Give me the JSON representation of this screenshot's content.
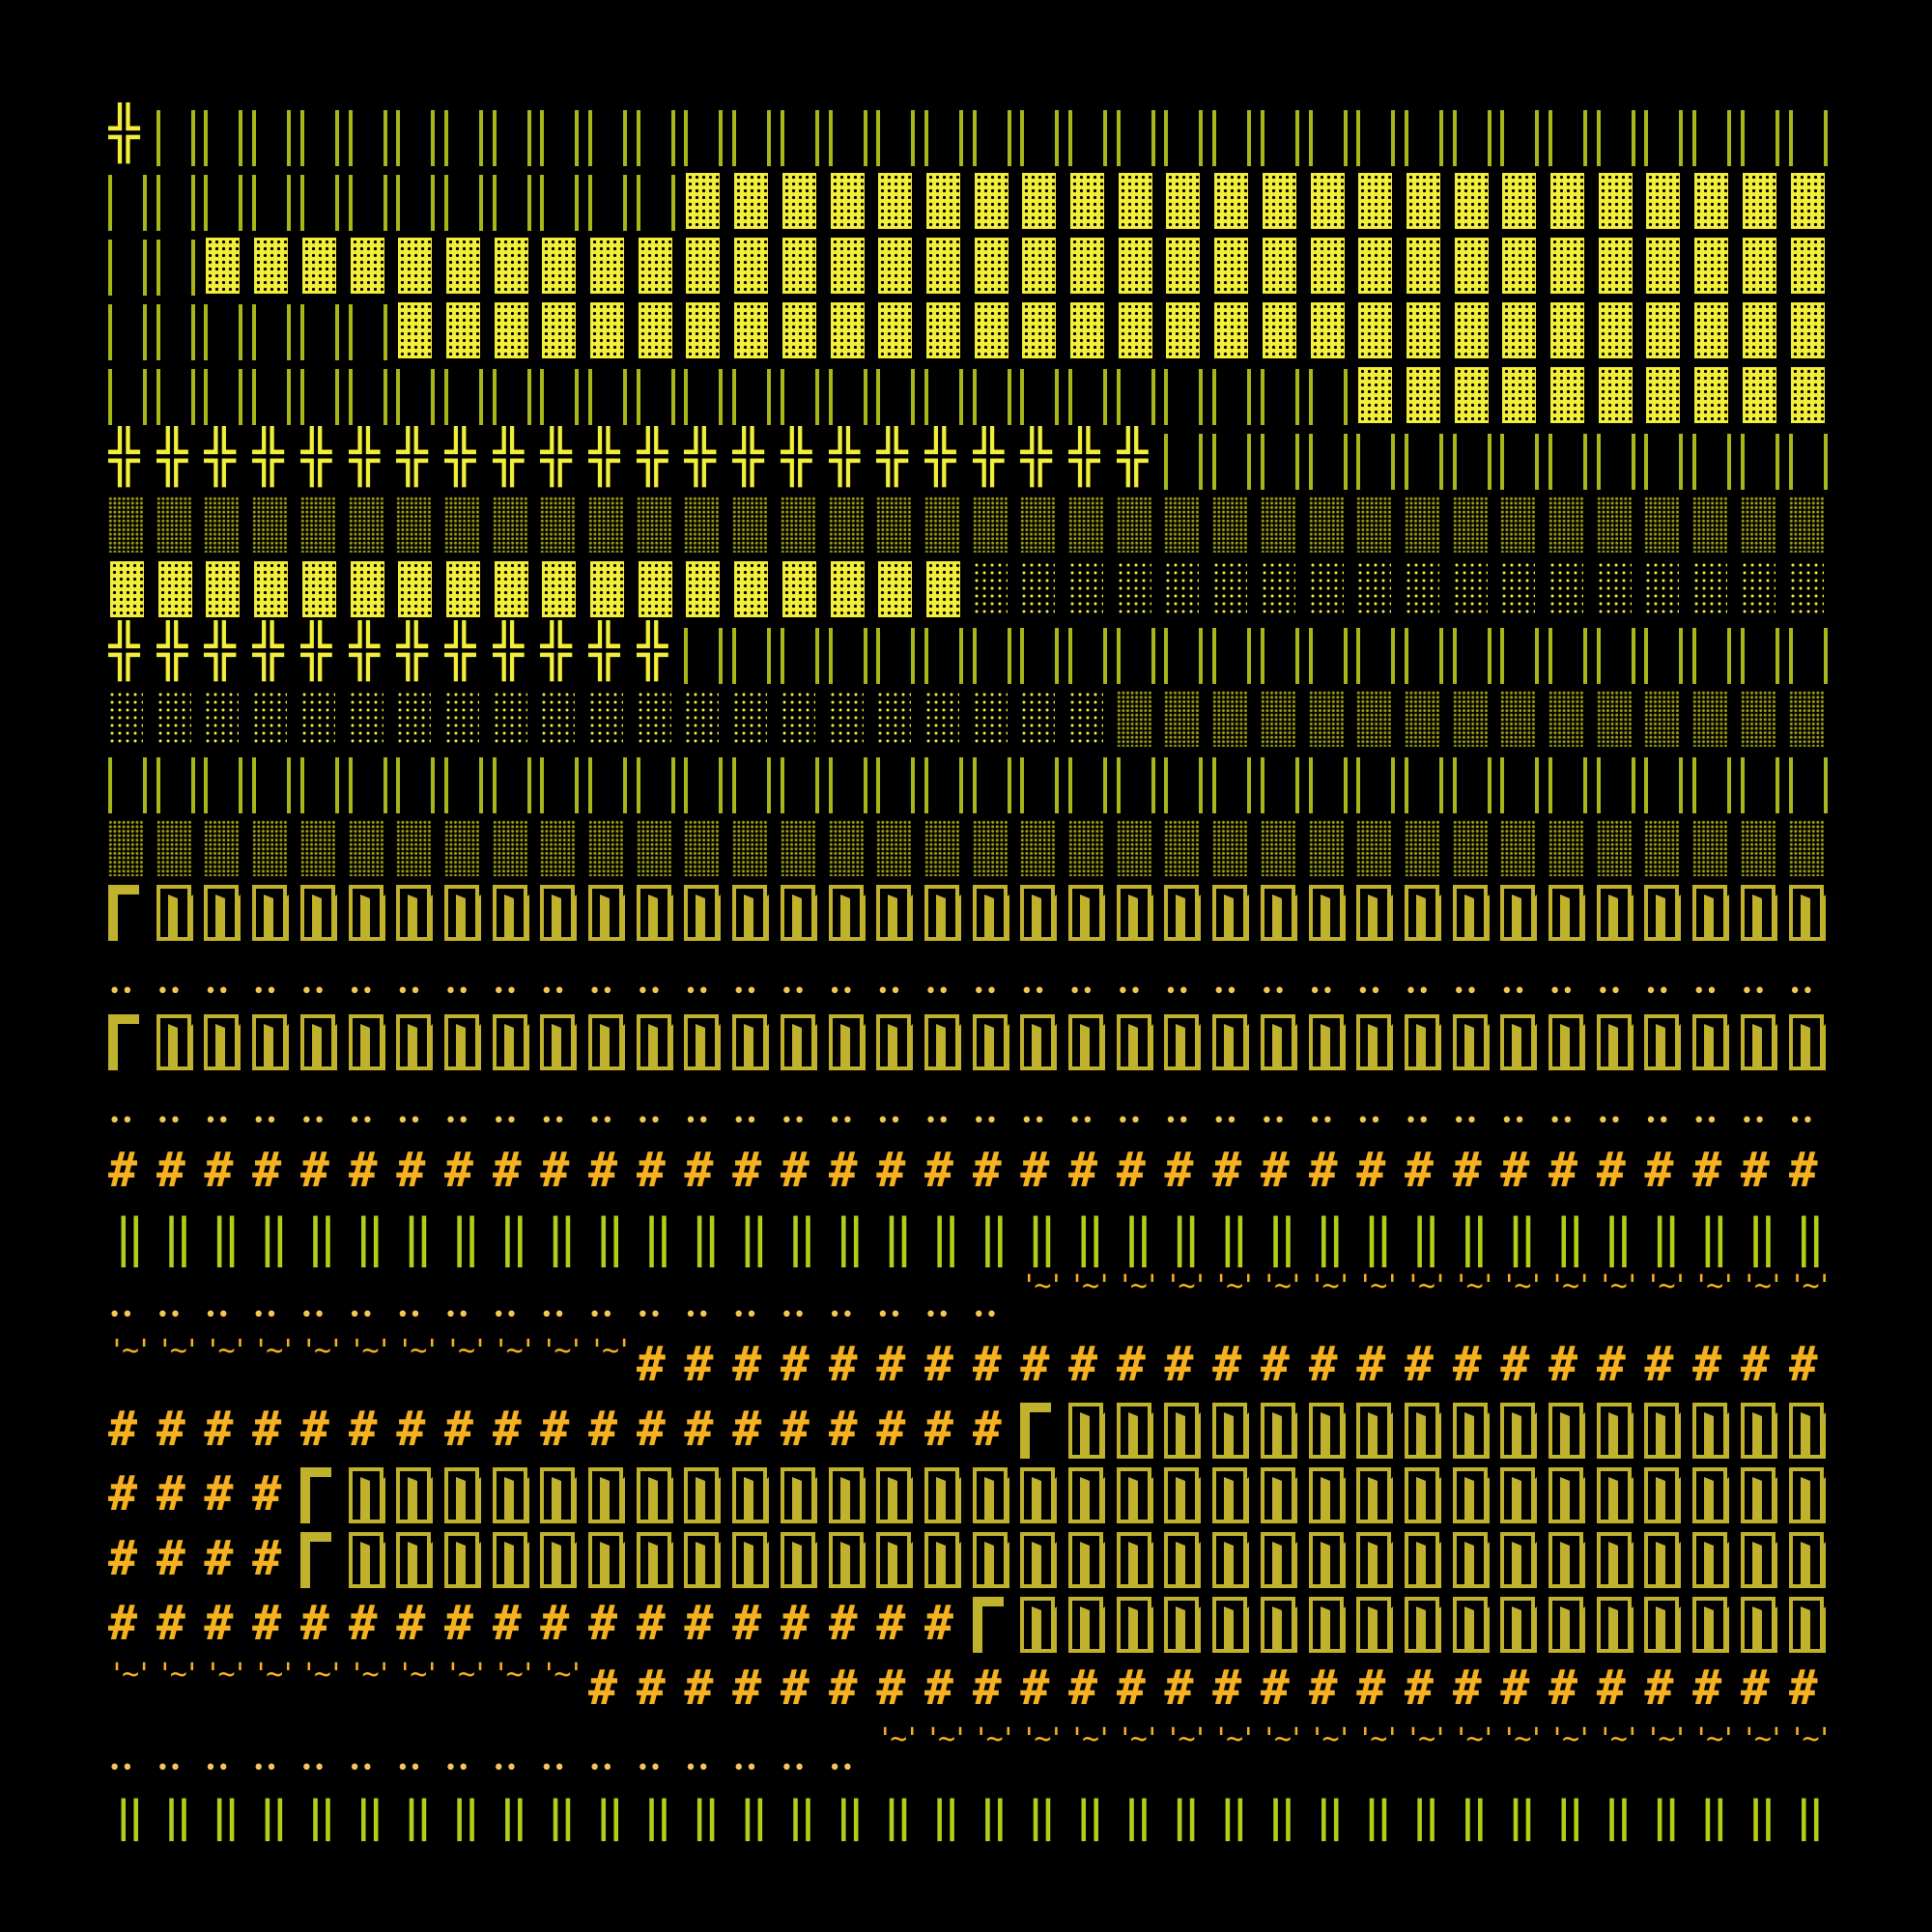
{
  "colors": {
    "background": "#000000",
    "green": "#a7b719",
    "green2": "#b5cc1a",
    "bright": "#f2ee3a",
    "dim": "#9a9a14",
    "olive": "#c0b22c",
    "orange": "#f5b120",
    "dots": "#f5c656"
  },
  "glyph_key": {
    "X": "double-cross",
    "V": "vertical-bars",
    "B": "bright-dotted-block",
    "D": "dense-dotted-block",
    "S": "sparse-dotted-block",
    "R": "spiral-box",
    "r": "corner-bracket",
    "o": "two-dots",
    "H": "hash",
    "P": "double-bar",
    "W": "wave"
  },
  "glyph_chars": {
    "X": "╬",
    "H": "#",
    "P": "‖",
    "o": "••",
    "W": "'~'"
  },
  "rows": [
    "XVVVVVVVVVVVVVVVVVVVVVVVVVVVVVVVVVVVV",
    "VVVVVVVVVVVVBBBBBBBBBBBBBBBBBBBBBBBBB",
    "VVBBBBBBBBBBBBBBBBBBBBBBBBBBBBBBBBBBB",
    "VVVVVVBBBBBBBBBBBBBBBBBBBBBBBBBBBBBBB",
    "VVVVVVVVVVVVVVVVVVVVVVVVVVBBBBBBBBBBB",
    "XXXXXXXXXXXXXXXXXXXXXXVVVVVVVVVVVVVVV",
    "DDDDDDDDDDDDDDDDDDDDDDDDDDDDDDDDDDDDD",
    "BBBBBBBBBBBBBBBBBBSSSSSSSSSSSSSSSSSSS",
    "XXXXXXXXXXXXVVVVVVVVVVVVVVVVVVVVVVVVV",
    "SSSSSSSSSSSSSSSSSSSSSDDDDDDDDDDDDDDDD",
    "VVVVVVVVVVVVVVVVVVVVVVVVVVVVVVVVVVVVV",
    "DDDDDDDDDDDDDDDDDDDDDDDDDDDDDDDDDDDDD",
    "rRRRRRRRRRRRRRRRRRRRRRRRRRRRRRRRRRRRR",
    "ooooooooooooooooooooooooooooooooooooo",
    "rRRRRRRRRRRRRRRRRRRRRRRRRRRRRRRRRRRRR",
    "ooooooooooooooooooooooooooooooooooooo",
    "HHHHHHHHHHHHHHHHHHHHHHHHHHHHHHHHHHHHH",
    "PPPPPPPPPPPPPPPPPPPPPPPPPPPPPPPPPPPP ",
    "oooooooooooooooooooWWWWWWWWWWWWWWWWWW",
    "WWWWWWWWWWWHHHHHHHHHHHHHHHHHHHHHHHHHH",
    "HHHHHHHHHHHHHHHHHHHrRRRRRRRRRRRRRRRRR",
    "HHHHrRRRRRRRRRRRRRRRRRRRRRRRRRRRRRRRR",
    "HHHHrRRRRRRRRRRRRRRRRRRRRRRRRRRRRRRRR",
    "HHHHHHHHHHHHHHHHHHrRRRRRRRRRRRRRRRRRR",
    "WWWWWWWWWWHHHHHHHHHHHHHHHHHHHHHHHHHHH",
    "ooooooooooooooooWWWWWWWWWWWWWWWWWWWWW",
    "PPPPPPPPPPPPPPPPPPPPPPPPPPPPPPPPPPPP "
  ]
}
